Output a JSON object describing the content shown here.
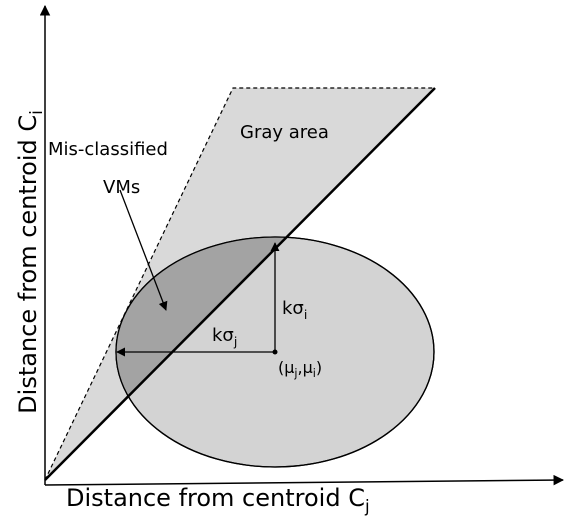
{
  "axes": {
    "x_label": {
      "text": "Distance from centroid C",
      "sub": "j"
    },
    "y_label": {
      "text": "Distance from centroid C",
      "sub": "i"
    }
  },
  "labels": {
    "gray_area": "Gray area",
    "misclassified": "Mis-classified",
    "vms": "VMs",
    "k_sigma_j": {
      "text": "kσ",
      "sub": "j"
    },
    "k_sigma_i": {
      "text": "kσ",
      "sub": "i"
    },
    "mean": {
      "open": "(μ",
      "sub1": "j",
      "mid": ",μ",
      "sub2": "i",
      "close": ")"
    }
  }
}
